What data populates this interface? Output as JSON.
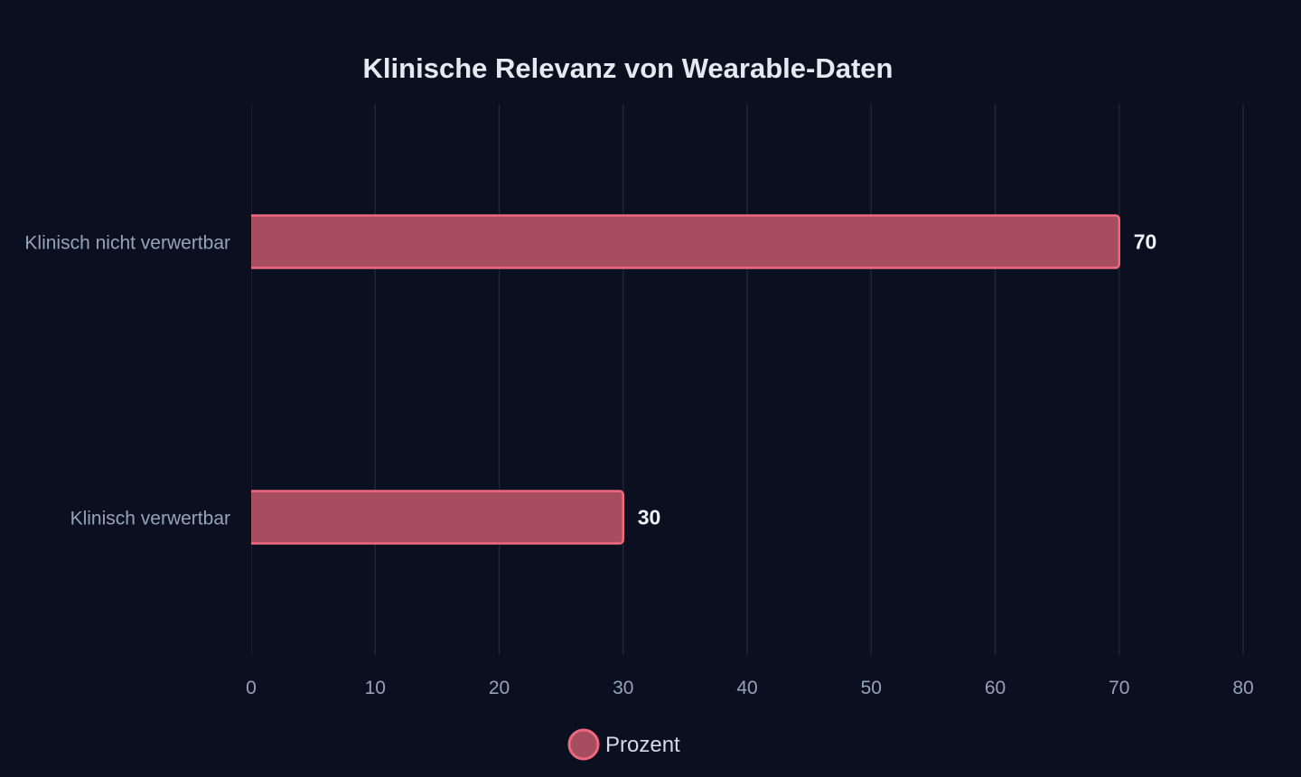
{
  "chart_data": {
    "type": "bar",
    "orientation": "horizontal",
    "title": "Klinische Relevanz von Wearable-Daten",
    "categories": [
      "Klinisch nicht verwertbar",
      "Klinisch verwertbar"
    ],
    "series": [
      {
        "name": "Prozent",
        "values": [
          70,
          30
        ]
      }
    ],
    "xlim": [
      0,
      80
    ],
    "xticks": [
      0,
      10,
      20,
      30,
      40,
      50,
      60,
      70,
      80
    ],
    "grid": true,
    "legend_position": "bottom",
    "colors": {
      "bar_fill": "#a64d60",
      "bar_stroke": "#f06880",
      "background": "#0b1020"
    }
  }
}
